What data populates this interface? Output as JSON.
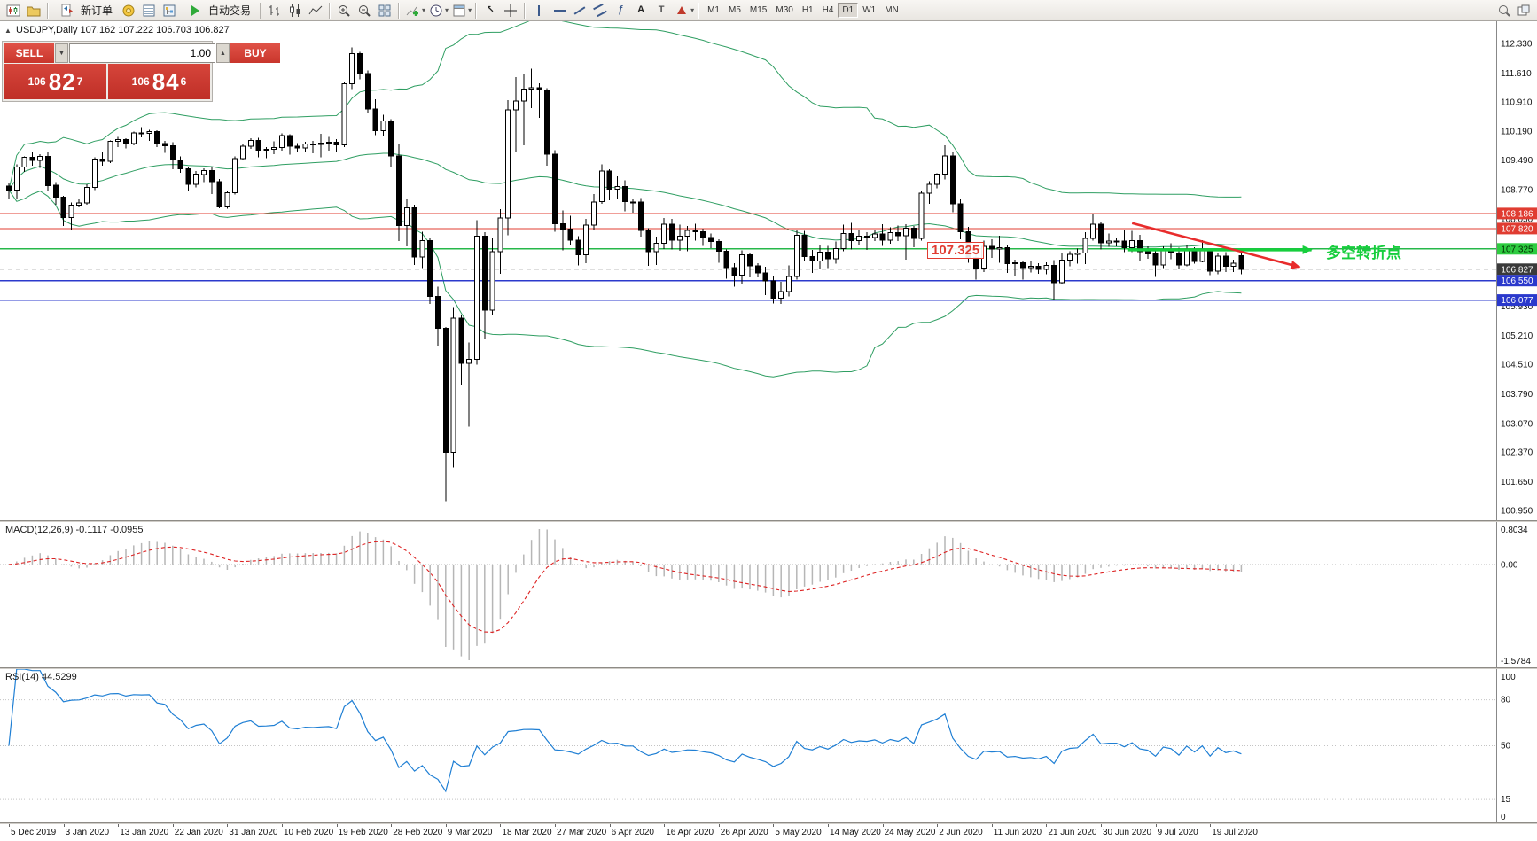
{
  "toolbar": {
    "new_order_label": "新订单",
    "autotrade_label": "自动交易",
    "timeframes": [
      "M1",
      "M5",
      "M15",
      "M30",
      "H1",
      "H4",
      "D1",
      "W1",
      "MN"
    ],
    "active_timeframe": "D1"
  },
  "chart_title": "USDJPY,Daily 107.162 107.222 106.703 106.827",
  "one_click": {
    "collapse_icon": "▲",
    "sell_label": "SELL",
    "buy_label": "BUY",
    "volume": "1.00",
    "sell_prefix": "106",
    "sell_big": "82",
    "sell_sup": "7",
    "buy_prefix": "106",
    "buy_big": "84",
    "buy_sup": "6"
  },
  "annotations": {
    "price_box": "107.325",
    "turning_point": "多空转折点"
  },
  "price_axis": {
    "ticks": [
      "112.330",
      "111.610",
      "110.910",
      "110.190",
      "109.490",
      "108.770",
      "108.050",
      "105.930",
      "105.210",
      "104.510",
      "103.790",
      "103.070",
      "102.370",
      "101.650",
      "100.950"
    ],
    "tick_values": [
      112.33,
      111.61,
      110.91,
      110.19,
      109.49,
      108.77,
      108.05,
      105.93,
      105.21,
      104.51,
      103.79,
      103.07,
      102.37,
      101.65,
      100.95
    ],
    "badges": [
      {
        "label": "108.186",
        "value": 108.186,
        "bg": "#e03c31",
        "fg": "#ffffff"
      },
      {
        "label": "107.820",
        "value": 107.82,
        "bg": "#e03c31",
        "fg": "#ffffff"
      },
      {
        "label": "107.325",
        "value": 107.325,
        "bg": "#2ecc40",
        "fg": "#002b00"
      },
      {
        "label": "106.827",
        "value": 106.827,
        "bg": "#3a3a3a",
        "fg": "#ffffff"
      },
      {
        "label": "106.550",
        "value": 106.55,
        "bg": "#2b39cc",
        "fg": "#ffffff"
      },
      {
        "label": "106.077",
        "value": 106.077,
        "bg": "#2b39cc",
        "fg": "#ffffff"
      }
    ]
  },
  "levels": [
    {
      "value": 108.186,
      "color": "#e03c31",
      "width": 1
    },
    {
      "value": 107.82,
      "color": "#e03c31",
      "width": 1
    },
    {
      "value": 107.325,
      "color": "#27b84a",
      "width": 1.4
    },
    {
      "value": 106.55,
      "color": "#2b39cc",
      "width": 1.6
    },
    {
      "value": 106.077,
      "color": "#2b39cc",
      "width": 1.6
    }
  ],
  "current_price": {
    "value": 106.827
  },
  "macd": {
    "header": "MACD(12,26,9) -0.1117 -0.0955",
    "axis_max": "0.8034",
    "axis_zero": "0.00",
    "axis_min": "-1.5784"
  },
  "rsi": {
    "header": "RSI(14) 44.5299",
    "axis": [
      "100",
      "80",
      "50",
      "15",
      "0"
    ],
    "axis_values": [
      100,
      80,
      50,
      15,
      0
    ],
    "levels": [
      80,
      50,
      15
    ]
  },
  "x_axis_dates": [
    "5 Dec 2019",
    "3 Jan 2020",
    "13 Jan 2020",
    "22 Jan 2020",
    "31 Jan 2020",
    "10 Feb 2020",
    "19 Feb 2020",
    "28 Feb 2020",
    "9 Mar 2020",
    "18 Mar 2020",
    "27 Mar 2020",
    "6 Apr 2020",
    "16 Apr 2020",
    "26 Apr 2020",
    "5 May 2020",
    "14 May 2020",
    "24 May 2020",
    "2 Jun 2020",
    "11 Jun 2020",
    "21 Jun 2020",
    "30 Jun 2020",
    "9 Jul 2020",
    "19 Jul 2020"
  ],
  "chart_data": {
    "type": "candlestick",
    "symbol": "USDJPY",
    "period": "Daily",
    "last_candle": {
      "open": 107.162,
      "high": 107.222,
      "low": 106.703,
      "close": 106.827
    },
    "candles_per_label": 7,
    "bollinger": {
      "period": 55,
      "deviation": 2,
      "color": "#2f9e62"
    },
    "trend_arrow": {
      "from_index": 144,
      "from_price": 107.95,
      "to_index": 165.5,
      "to_price": 106.88,
      "color": "#e82c2c"
    },
    "support_line": {
      "from_index": 143.5,
      "to_index": 167,
      "price": 107.3,
      "color": "#17ce3d"
    },
    "ohlc": [
      [
        108.85,
        108.92,
        108.55,
        108.76
      ],
      [
        108.76,
        109.38,
        108.53,
        109.32
      ],
      [
        109.32,
        109.58,
        109.2,
        109.55
      ],
      [
        109.55,
        109.68,
        109.35,
        109.48
      ],
      [
        109.48,
        109.63,
        109.3,
        109.58
      ],
      [
        109.58,
        109.68,
        108.75,
        108.87
      ],
      [
        108.87,
        108.95,
        108.4,
        108.58
      ],
      [
        108.58,
        108.62,
        107.88,
        108.09
      ],
      [
        108.09,
        108.45,
        107.77,
        108.39
      ],
      [
        108.39,
        108.55,
        108.33,
        108.44
      ],
      [
        108.44,
        108.9,
        108.4,
        108.82
      ],
      [
        108.82,
        109.56,
        108.76,
        109.51
      ],
      [
        109.51,
        109.69,
        109.35,
        109.46
      ],
      [
        109.46,
        109.97,
        109.42,
        109.94
      ],
      [
        109.94,
        110.05,
        109.8,
        109.99
      ],
      [
        109.99,
        110.02,
        109.77,
        109.89
      ],
      [
        109.89,
        110.18,
        109.85,
        110.15
      ],
      [
        110.15,
        110.29,
        110.04,
        110.14
      ],
      [
        110.14,
        110.22,
        109.95,
        110.18
      ],
      [
        110.18,
        110.21,
        109.8,
        109.89
      ],
      [
        109.89,
        109.96,
        109.66,
        109.84
      ],
      [
        109.84,
        109.92,
        109.26,
        109.49
      ],
      [
        109.49,
        109.58,
        109.18,
        109.27
      ],
      [
        109.27,
        109.31,
        108.73,
        108.9
      ],
      [
        108.9,
        109.22,
        108.82,
        109.14
      ],
      [
        109.14,
        109.29,
        108.95,
        109.23
      ],
      [
        109.23,
        109.32,
        108.66,
        108.96
      ],
      [
        108.96,
        109.03,
        108.31,
        108.35
      ],
      [
        108.35,
        108.75,
        108.3,
        108.69
      ],
      [
        108.69,
        109.58,
        108.65,
        109.52
      ],
      [
        109.52,
        109.89,
        109.48,
        109.82
      ],
      [
        109.82,
        110.02,
        109.76,
        109.97
      ],
      [
        109.97,
        110.03,
        109.55,
        109.73
      ],
      [
        109.73,
        109.8,
        109.53,
        109.75
      ],
      [
        109.75,
        109.94,
        109.63,
        109.79
      ],
      [
        109.79,
        110.14,
        109.72,
        110.08
      ],
      [
        110.08,
        110.12,
        109.62,
        109.82
      ],
      [
        109.82,
        109.9,
        109.7,
        109.78
      ],
      [
        109.78,
        109.93,
        109.7,
        109.88
      ],
      [
        109.88,
        109.95,
        109.65,
        109.87
      ],
      [
        109.87,
        110.13,
        109.55,
        109.9
      ],
      [
        109.9,
        110.05,
        109.72,
        109.92
      ],
      [
        109.92,
        110.0,
        109.7,
        109.86
      ],
      [
        109.86,
        111.4,
        109.8,
        111.35
      ],
      [
        111.35,
        112.23,
        111.22,
        112.08
      ],
      [
        112.08,
        112.12,
        111.46,
        111.6
      ],
      [
        111.6,
        111.67,
        110.62,
        110.73
      ],
      [
        110.73,
        110.97,
        110.1,
        110.2
      ],
      [
        110.2,
        110.59,
        110.07,
        110.44
      ],
      [
        110.44,
        110.48,
        109.32,
        109.59
      ],
      [
        109.59,
        109.89,
        107.51,
        107.89
      ],
      [
        107.89,
        108.55,
        107.38,
        108.32
      ],
      [
        108.32,
        108.4,
        106.93,
        107.13
      ],
      [
        107.13,
        107.74,
        106.86,
        107.53
      ],
      [
        107.53,
        107.58,
        105.98,
        106.16
      ],
      [
        106.16,
        106.4,
        104.97,
        105.39
      ],
      [
        105.39,
        105.42,
        101.18,
        102.36
      ],
      [
        102.36,
        105.91,
        102.0,
        105.64
      ],
      [
        105.64,
        105.7,
        103.99,
        104.53
      ],
      [
        104.53,
        105.04,
        102.99,
        104.63
      ],
      [
        104.63,
        108.02,
        104.5,
        107.63
      ],
      [
        107.63,
        107.73,
        105.14,
        105.83
      ],
      [
        105.83,
        107.58,
        105.7,
        107.26
      ],
      [
        107.26,
        108.29,
        106.72,
        108.08
      ],
      [
        108.08,
        110.95,
        107.66,
        110.71
      ],
      [
        110.71,
        111.51,
        109.68,
        110.93
      ],
      [
        110.93,
        111.59,
        109.85,
        111.22
      ],
      [
        111.22,
        111.71,
        110.75,
        111.25
      ],
      [
        111.25,
        111.36,
        110.52,
        111.2
      ],
      [
        111.2,
        111.24,
        109.35,
        109.63
      ],
      [
        109.63,
        109.73,
        107.74,
        107.94
      ],
      [
        107.94,
        108.26,
        107.29,
        107.81
      ],
      [
        107.81,
        108.13,
        107.42,
        107.54
      ],
      [
        107.54,
        107.63,
        106.92,
        107.18
      ],
      [
        107.18,
        108.05,
        106.98,
        107.9
      ],
      [
        107.9,
        108.66,
        107.78,
        108.47
      ],
      [
        108.47,
        109.38,
        108.42,
        109.22
      ],
      [
        109.22,
        109.26,
        108.51,
        108.78
      ],
      [
        108.78,
        109.09,
        108.55,
        108.84
      ],
      [
        108.84,
        108.99,
        108.24,
        108.47
      ],
      [
        108.47,
        108.55,
        108.21,
        108.47
      ],
      [
        108.47,
        108.56,
        107.62,
        107.77
      ],
      [
        107.77,
        107.83,
        106.91,
        107.26
      ],
      [
        107.26,
        107.62,
        106.93,
        107.46
      ],
      [
        107.46,
        108.08,
        107.32,
        107.92
      ],
      [
        107.92,
        108.05,
        107.31,
        107.54
      ],
      [
        107.54,
        107.91,
        107.28,
        107.63
      ],
      [
        107.63,
        107.88,
        107.27,
        107.77
      ],
      [
        107.77,
        107.94,
        107.52,
        107.74
      ],
      [
        107.74,
        107.82,
        107.4,
        107.6
      ],
      [
        107.6,
        107.7,
        107.34,
        107.5
      ],
      [
        107.5,
        107.56,
        106.99,
        107.27
      ],
      [
        107.27,
        107.31,
        106.6,
        106.87
      ],
      [
        106.87,
        106.98,
        106.4,
        106.68
      ],
      [
        106.68,
        107.29,
        106.47,
        107.18
      ],
      [
        107.18,
        107.23,
        106.63,
        106.91
      ],
      [
        106.91,
        106.98,
        106.63,
        106.74
      ],
      [
        106.74,
        106.89,
        106.2,
        106.54
      ],
      [
        106.54,
        106.65,
        105.99,
        106.12
      ],
      [
        106.12,
        106.52,
        105.98,
        106.28
      ],
      [
        106.28,
        106.92,
        106.17,
        106.65
      ],
      [
        106.65,
        107.77,
        106.58,
        107.65
      ],
      [
        107.65,
        107.76,
        107.02,
        107.14
      ],
      [
        107.14,
        107.3,
        106.74,
        107.03
      ],
      [
        107.03,
        107.43,
        106.85,
        107.25
      ],
      [
        107.25,
        107.4,
        106.86,
        107.08
      ],
      [
        107.08,
        107.5,
        106.96,
        107.33
      ],
      [
        107.33,
        107.91,
        107.27,
        107.7
      ],
      [
        107.7,
        107.96,
        107.31,
        107.53
      ],
      [
        107.53,
        107.78,
        107.42,
        107.63
      ],
      [
        107.63,
        107.73,
        107.3,
        107.6
      ],
      [
        107.6,
        107.8,
        107.51,
        107.69
      ],
      [
        107.69,
        107.92,
        107.4,
        107.54
      ],
      [
        107.54,
        107.85,
        107.45,
        107.72
      ],
      [
        107.72,
        107.89,
        107.51,
        107.64
      ],
      [
        107.64,
        107.92,
        107.06,
        107.83
      ],
      [
        107.83,
        107.88,
        107.36,
        107.58
      ],
      [
        107.58,
        108.73,
        107.52,
        108.68
      ],
      [
        108.68,
        108.97,
        108.42,
        108.9
      ],
      [
        108.9,
        109.17,
        108.8,
        109.15
      ],
      [
        109.15,
        109.85,
        109.02,
        109.59
      ],
      [
        109.59,
        109.7,
        108.22,
        108.42
      ],
      [
        108.42,
        108.54,
        107.56,
        107.74
      ],
      [
        107.74,
        107.86,
        106.99,
        107.12
      ],
      [
        107.12,
        107.26,
        106.58,
        106.86
      ],
      [
        106.86,
        107.52,
        106.76,
        107.38
      ],
      [
        107.38,
        107.56,
        107.1,
        107.32
      ],
      [
        107.32,
        107.64,
        106.99,
        107.35
      ],
      [
        107.35,
        107.42,
        106.74,
        106.96
      ],
      [
        106.96,
        107.06,
        106.67,
        106.99
      ],
      [
        106.99,
        107.04,
        106.58,
        106.87
      ],
      [
        106.87,
        107.02,
        106.75,
        106.9
      ],
      [
        106.9,
        106.98,
        106.72,
        106.82
      ],
      [
        106.82,
        107.0,
        106.7,
        106.92
      ],
      [
        106.92,
        107.05,
        106.07,
        106.5
      ],
      [
        106.5,
        107.23,
        106.46,
        107.05
      ],
      [
        107.05,
        107.27,
        106.9,
        107.19
      ],
      [
        107.19,
        107.33,
        106.96,
        107.22
      ],
      [
        107.22,
        107.73,
        106.95,
        107.58
      ],
      [
        107.58,
        108.16,
        107.52,
        107.93
      ],
      [
        107.93,
        107.97,
        107.31,
        107.47
      ],
      [
        107.47,
        107.7,
        107.37,
        107.51
      ],
      [
        107.51,
        107.58,
        107.39,
        107.51
      ],
      [
        107.51,
        107.77,
        107.25,
        107.35
      ],
      [
        107.35,
        107.76,
        107.25,
        107.53
      ],
      [
        107.53,
        107.67,
        107.04,
        107.26
      ],
      [
        107.26,
        107.39,
        107.08,
        107.2
      ],
      [
        107.2,
        107.27,
        106.64,
        106.93
      ],
      [
        106.93,
        107.39,
        106.86,
        107.29
      ],
      [
        107.29,
        107.46,
        107.07,
        107.22
      ],
      [
        107.22,
        107.35,
        106.82,
        106.93
      ],
      [
        106.93,
        107.41,
        106.9,
        107.29
      ],
      [
        107.29,
        107.36,
        106.96,
        107.02
      ],
      [
        107.02,
        107.54,
        107.0,
        107.28
      ],
      [
        107.28,
        107.32,
        106.68,
        106.78
      ],
      [
        106.78,
        107.21,
        106.7,
        107.15
      ],
      [
        107.15,
        107.24,
        106.76,
        106.9
      ],
      [
        106.9,
        107.06,
        106.76,
        106.97
      ],
      [
        107.162,
        107.222,
        106.703,
        106.827
      ]
    ]
  }
}
